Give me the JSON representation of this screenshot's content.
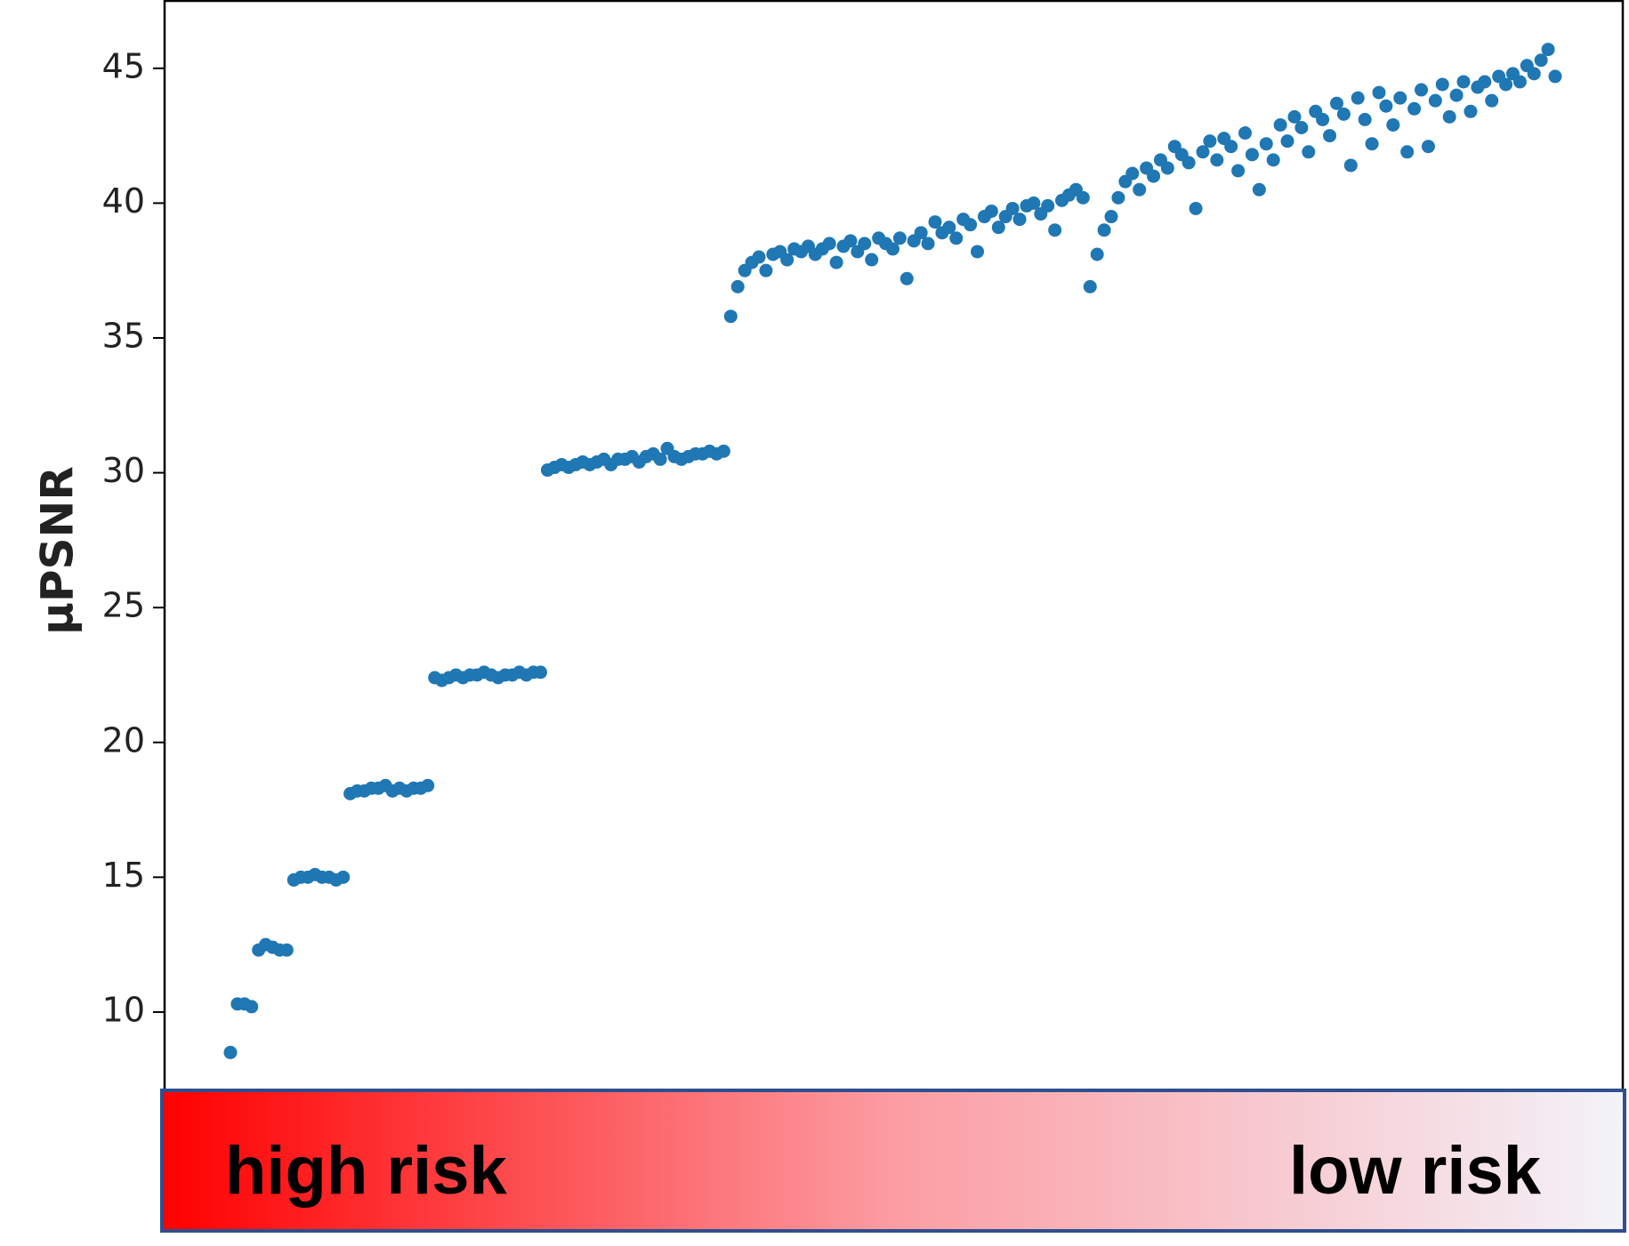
{
  "chart_data": {
    "type": "scatter",
    "ylabel": "μPSNR",
    "color": "#1f77b4",
    "ylim": [
      6.7,
      47.5
    ],
    "yticks": [
      10,
      15,
      20,
      25,
      30,
      35,
      40,
      45
    ],
    "values": [
      8.5,
      10.3,
      10.3,
      10.2,
      12.3,
      12.5,
      12.4,
      12.3,
      12.3,
      14.9,
      15.0,
      15.0,
      15.1,
      15.0,
      15.0,
      14.9,
      15.0,
      18.1,
      18.2,
      18.2,
      18.3,
      18.3,
      18.4,
      18.2,
      18.3,
      18.2,
      18.3,
      18.3,
      18.4,
      22.4,
      22.3,
      22.4,
      22.5,
      22.4,
      22.5,
      22.5,
      22.6,
      22.5,
      22.4,
      22.5,
      22.5,
      22.6,
      22.5,
      22.6,
      22.6,
      30.1,
      30.2,
      30.3,
      30.2,
      30.3,
      30.4,
      30.3,
      30.4,
      30.5,
      30.3,
      30.5,
      30.5,
      30.6,
      30.4,
      30.6,
      30.7,
      30.5,
      30.9,
      30.6,
      30.5,
      30.6,
      30.7,
      30.7,
      30.8,
      30.7,
      30.8,
      35.8,
      36.9,
      37.5,
      37.8,
      38.0,
      37.5,
      38.1,
      38.2,
      37.9,
      38.3,
      38.2,
      38.4,
      38.1,
      38.3,
      38.5,
      37.8,
      38.4,
      38.6,
      38.2,
      38.5,
      37.9,
      38.7,
      38.5,
      38.3,
      38.7,
      37.2,
      38.6,
      38.9,
      38.5,
      39.3,
      38.9,
      39.1,
      38.7,
      39.4,
      39.2,
      38.2,
      39.5,
      39.7,
      39.1,
      39.5,
      39.8,
      39.4,
      39.9,
      40.0,
      39.6,
      39.9,
      39.0,
      40.1,
      40.3,
      40.5,
      40.2,
      36.9,
      38.1,
      39.0,
      39.5,
      40.2,
      40.8,
      41.1,
      40.5,
      41.3,
      41.0,
      41.6,
      41.3,
      42.1,
      41.8,
      41.5,
      39.8,
      41.9,
      42.3,
      41.6,
      42.4,
      42.1,
      41.2,
      42.6,
      41.8,
      40.5,
      42.2,
      41.6,
      42.9,
      42.3,
      43.2,
      42.8,
      41.9,
      43.4,
      43.1,
      42.5,
      43.7,
      43.3,
      41.4,
      43.9,
      43.1,
      42.2,
      44.1,
      43.6,
      42.9,
      43.9,
      41.9,
      43.5,
      44.2,
      42.1,
      43.8,
      44.4,
      43.2,
      44.0,
      44.5,
      43.4,
      44.3,
      44.5,
      43.8,
      44.7,
      44.4,
      44.8,
      44.5,
      45.1,
      44.8,
      45.3,
      45.7,
      44.7
    ],
    "colorbar_labels": [
      "high risk",
      "low risk"
    ],
    "colorbar_colors": [
      "#ff0000",
      "#fb9da3",
      "#f3f3f9"
    ]
  }
}
